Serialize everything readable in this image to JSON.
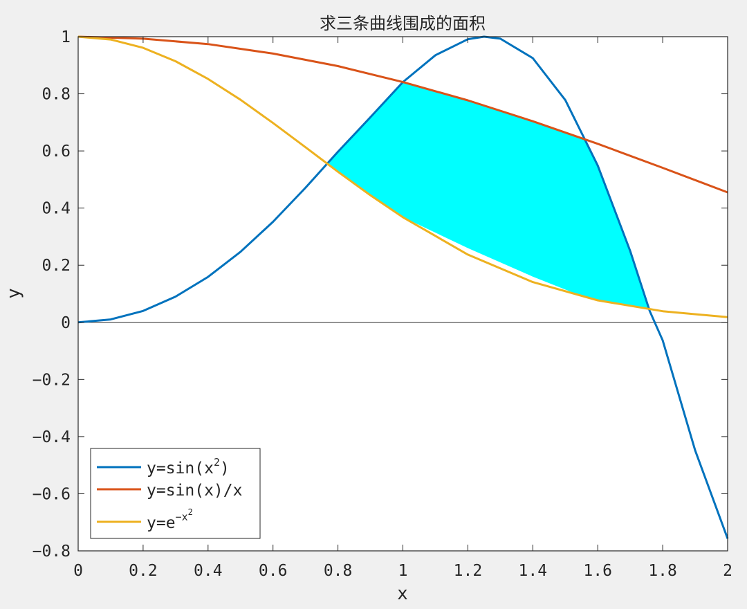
{
  "chart_data": {
    "type": "line",
    "title": "求三条曲线围成的面积",
    "xlabel": "x",
    "ylabel": "y",
    "xlim": [
      0,
      2
    ],
    "ylim": [
      -0.8,
      1
    ],
    "xticks": [
      "0",
      "0.2",
      "0.4",
      "0.6",
      "0.8",
      "1",
      "1.2",
      "1.4",
      "1.6",
      "1.8",
      "2"
    ],
    "yticks": [
      "1",
      "0.8",
      "0.6",
      "0.4",
      "0.2",
      "0",
      "−0.2",
      "−0.4",
      "−0.6",
      "−0.8"
    ],
    "grid": false,
    "legend_position": "bottom-left",
    "series": [
      {
        "name": "y=sin(x²)",
        "legend_base": "y=sin(x",
        "legend_sup": "2",
        "legend_tail": ")",
        "color": "#0072BD",
        "x": [
          0,
          0.1,
          0.2,
          0.3,
          0.4,
          0.5,
          0.6,
          0.7,
          0.8,
          0.9,
          1.0,
          1.1,
          1.2,
          1.25,
          1.3,
          1.4,
          1.5,
          1.6,
          1.7,
          1.76,
          1.8,
          1.9,
          2.0
        ],
        "y": [
          0,
          0.01,
          0.04,
          0.09,
          0.159,
          0.247,
          0.352,
          0.471,
          0.597,
          0.718,
          0.841,
          0.935,
          0.991,
          1.0,
          0.993,
          0.925,
          0.778,
          0.549,
          0.25,
          0.04,
          -0.063,
          -0.448,
          -0.757
        ]
      },
      {
        "name": "y=sin(x)/x",
        "legend_base": "y=sin(x)/x",
        "legend_sup": "",
        "legend_tail": "",
        "color": "#D95319",
        "x": [
          0,
          0.2,
          0.4,
          0.6,
          0.8,
          1.0,
          1.2,
          1.4,
          1.6,
          1.8,
          2.0
        ],
        "y": [
          1.0,
          0.993,
          0.974,
          0.941,
          0.897,
          0.841,
          0.777,
          0.704,
          0.625,
          0.541,
          0.455
        ]
      },
      {
        "name": "y=e^(−x²)",
        "legend_base": "y=e",
        "legend_sup": "−x",
        "legend_sup2": "2",
        "legend_tail": "",
        "color": "#EDB120",
        "x": [
          0,
          0.1,
          0.2,
          0.3,
          0.4,
          0.5,
          0.6,
          0.7,
          0.77,
          0.8,
          0.9,
          1.0,
          1.2,
          1.4,
          1.6,
          1.8,
          2.0
        ],
        "y": [
          1.0,
          0.99,
          0.961,
          0.914,
          0.852,
          0.779,
          0.698,
          0.613,
          0.553,
          0.527,
          0.445,
          0.368,
          0.237,
          0.141,
          0.077,
          0.039,
          0.018
        ]
      }
    ],
    "fill": {
      "color": "#00FFFF",
      "x": [
        0.77,
        0.8,
        0.9,
        1.0,
        1.2,
        1.4,
        1.56,
        1.6,
        1.7,
        1.76,
        1.7,
        1.56,
        1.4,
        1.2,
        1.0,
        0.9,
        0.8,
        0.77
      ],
      "y": [
        0.553,
        0.597,
        0.718,
        0.841,
        0.777,
        0.704,
        0.64,
        0.549,
        0.25,
        0.045,
        0.055,
        0.088,
        0.16,
        0.26,
        0.368,
        0.445,
        0.527,
        0.553
      ]
    }
  }
}
